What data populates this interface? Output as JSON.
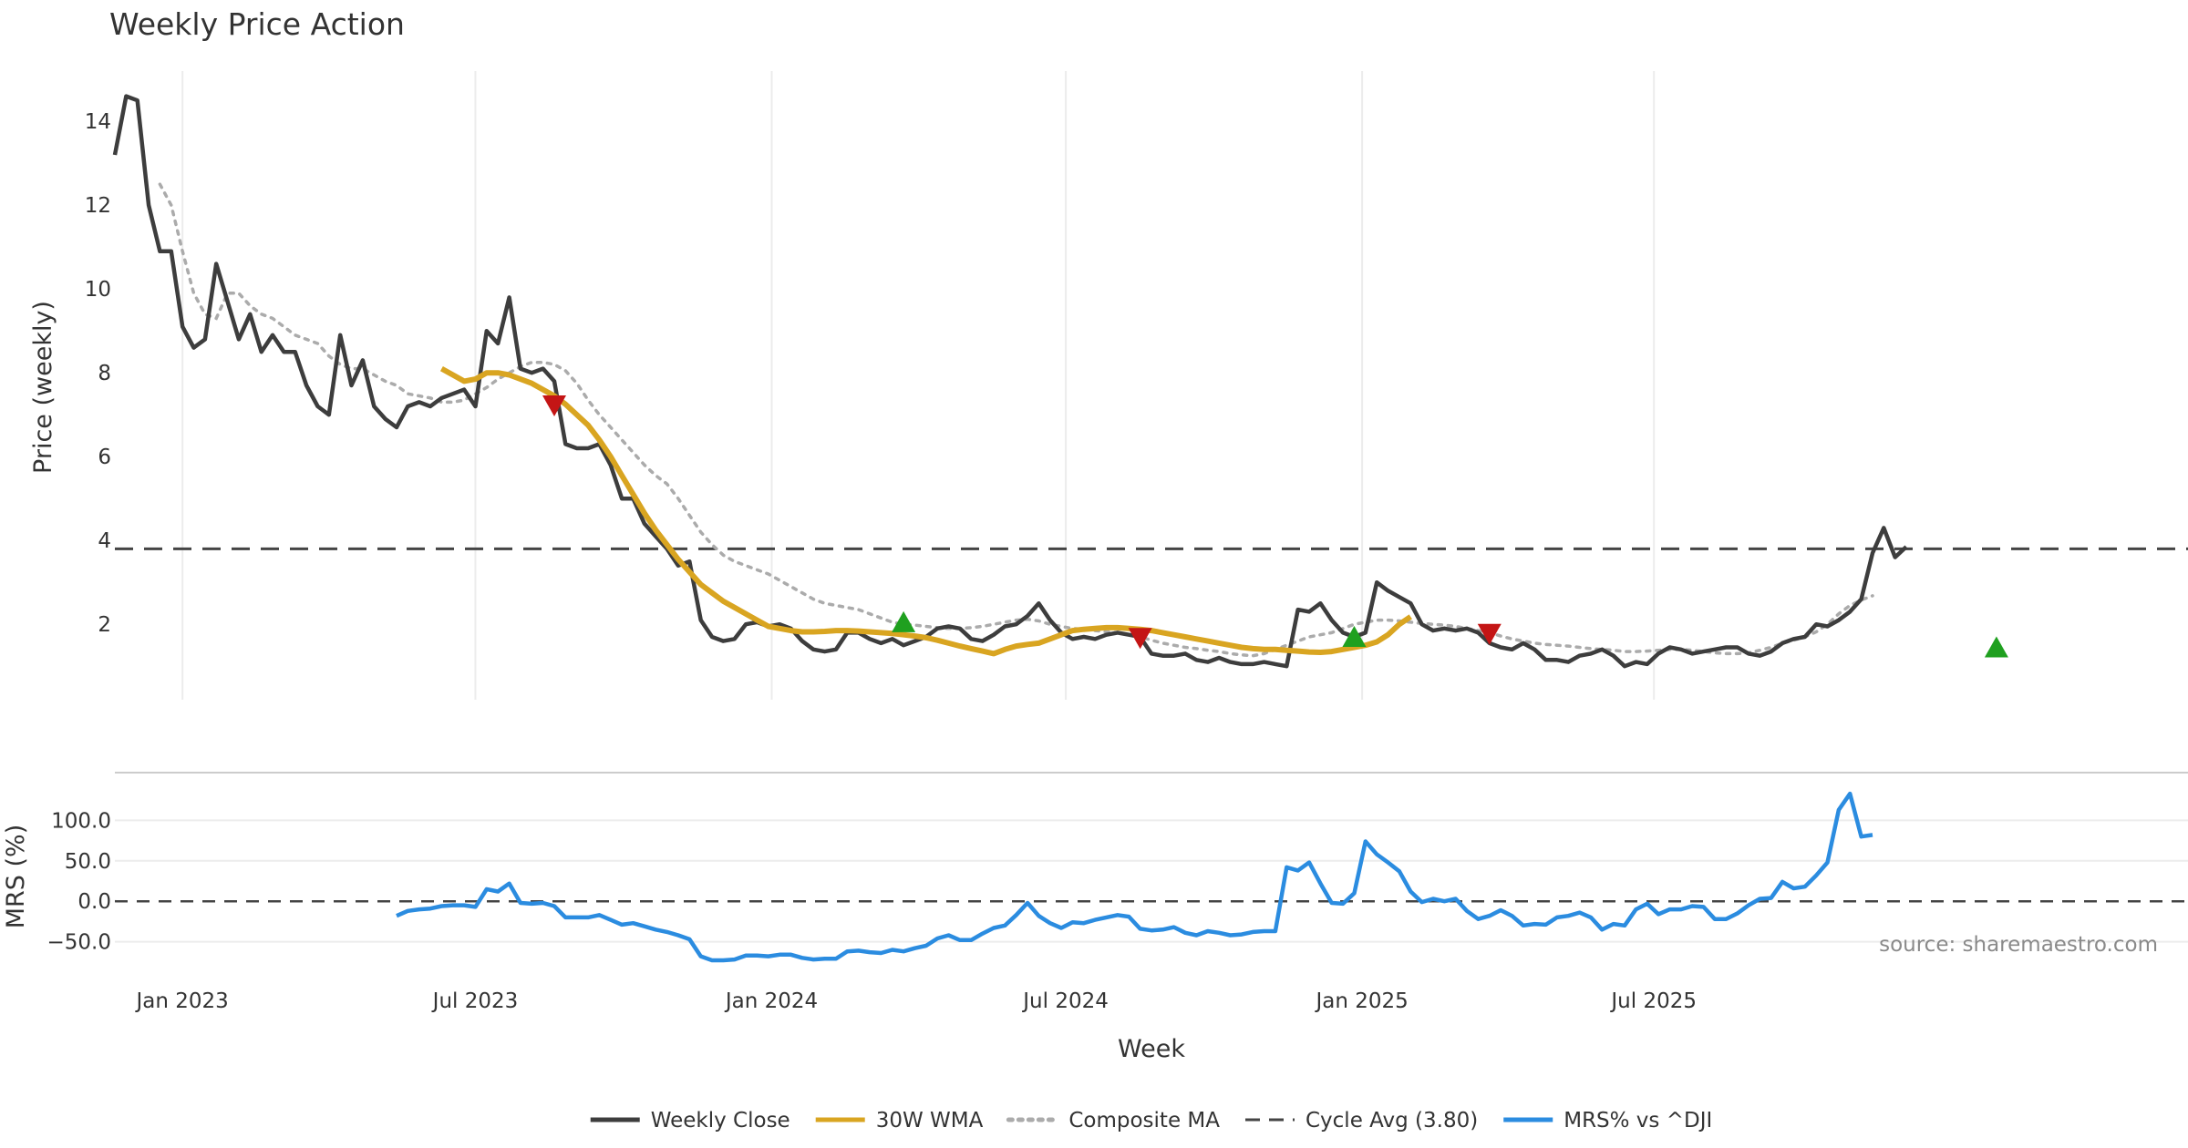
{
  "chart_data": [
    {
      "type": "line",
      "title": "Weekly Price Action",
      "ylabel": "Price (weekly)",
      "ylim": [
        0.2,
        15.2
      ],
      "yticks": [
        2,
        4,
        6,
        8,
        10,
        12,
        14
      ],
      "xlim": [
        0,
        184
      ],
      "x_axis_unit": "weeks since 2022-11-21",
      "reference_line": {
        "name": "Cycle Avg (3.80)",
        "value": 3.8
      },
      "series": [
        {
          "name": "Weekly Close",
          "color": "#3d3d3d",
          "style": "solid",
          "values": [
            13.2,
            14.6,
            14.5,
            12.0,
            10.9,
            10.9,
            9.1,
            8.6,
            8.8,
            10.6,
            9.7,
            8.8,
            9.4,
            8.5,
            8.9,
            8.5,
            8.5,
            7.7,
            7.2,
            7.0,
            8.9,
            7.7,
            8.3,
            7.2,
            6.9,
            6.7,
            7.2,
            7.3,
            7.2,
            7.4,
            7.5,
            7.6,
            7.2,
            9.0,
            8.7,
            9.8,
            8.1,
            8.0,
            8.1,
            7.8,
            6.3,
            6.2,
            6.2,
            6.3,
            5.8,
            5.0,
            5.0,
            4.4,
            4.1,
            3.8,
            3.4,
            3.5,
            2.1,
            1.7,
            1.6,
            1.65,
            2.0,
            2.05,
            1.95,
            2.0,
            1.9,
            1.6,
            1.4,
            1.35,
            1.4,
            1.8,
            1.8,
            1.65,
            1.55,
            1.65,
            1.5,
            1.6,
            1.7,
            1.9,
            1.95,
            1.9,
            1.65,
            1.6,
            1.75,
            1.95,
            2.0,
            2.2,
            2.5,
            2.1,
            1.8,
            1.65,
            1.7,
            1.65,
            1.75,
            1.8,
            1.75,
            1.7,
            1.3,
            1.25,
            1.25,
            1.3,
            1.15,
            1.1,
            1.2,
            1.1,
            1.05,
            1.05,
            1.1,
            1.05,
            1.0,
            2.35,
            2.3,
            2.5,
            2.1,
            1.8,
            1.7,
            1.8,
            3.0,
            2.8,
            2.65,
            2.5,
            2.0,
            1.85,
            1.9,
            1.85,
            1.9,
            1.8,
            1.55,
            1.45,
            1.4,
            1.55,
            1.4,
            1.15,
            1.15,
            1.1,
            1.25,
            1.3,
            1.4,
            1.25,
            1.0,
            1.1,
            1.05,
            1.3,
            1.45,
            1.4,
            1.3,
            1.35,
            1.4,
            1.45,
            1.45,
            1.3,
            1.25,
            1.35,
            1.55,
            1.65,
            1.7,
            2.0,
            1.95,
            2.1,
            2.3,
            2.6,
            3.7,
            4.3,
            3.6,
            3.85
          ]
        },
        {
          "name": "30W WMA",
          "color": "#d9a521",
          "style": "solid",
          "start_week": 29,
          "values": [
            8.1,
            7.95,
            7.8,
            7.85,
            8.0,
            8.0,
            7.95,
            7.85,
            7.75,
            7.6,
            7.45,
            7.25,
            7.0,
            6.75,
            6.4,
            6.0,
            5.55,
            5.1,
            4.65,
            4.25,
            3.9,
            3.55,
            3.25,
            2.95,
            2.75,
            2.55,
            2.4,
            2.25,
            2.1,
            1.95,
            1.9,
            1.85,
            1.82,
            1.82,
            1.83,
            1.85,
            1.85,
            1.84,
            1.82,
            1.8,
            1.78,
            1.75,
            1.72,
            1.68,
            1.62,
            1.55,
            1.48,
            1.42,
            1.36,
            1.3,
            1.4,
            1.48,
            1.52,
            1.55,
            1.65,
            1.75,
            1.85,
            1.88,
            1.9,
            1.92,
            1.92,
            1.9,
            1.88,
            1.85,
            1.8,
            1.75,
            1.7,
            1.65,
            1.6,
            1.55,
            1.5,
            1.45,
            1.42,
            1.4,
            1.4,
            1.38,
            1.36,
            1.34,
            1.33,
            1.35,
            1.4,
            1.45,
            1.5,
            1.58,
            1.75,
            2.0,
            2.18
          ]
        },
        {
          "name": "Composite MA",
          "color": "#ababab",
          "style": "dotted",
          "start_week": 4,
          "values": [
            12.5,
            12.0,
            10.9,
            9.9,
            9.4,
            9.3,
            9.9,
            9.9,
            9.6,
            9.4,
            9.3,
            9.1,
            8.9,
            8.8,
            8.7,
            8.4,
            8.2,
            8.1,
            8.1,
            7.95,
            7.8,
            7.7,
            7.5,
            7.45,
            7.4,
            7.3,
            7.3,
            7.35,
            7.5,
            7.65,
            7.85,
            8.0,
            8.15,
            8.25,
            8.25,
            8.2,
            8.05,
            7.75,
            7.35,
            7.0,
            6.7,
            6.4,
            6.1,
            5.8,
            5.55,
            5.35,
            5.0,
            4.6,
            4.2,
            3.9,
            3.65,
            3.5,
            3.4,
            3.3,
            3.2,
            3.05,
            2.9,
            2.75,
            2.6,
            2.5,
            2.45,
            2.4,
            2.35,
            2.25,
            2.15,
            2.05,
            2.0,
            1.98,
            1.95,
            1.92,
            1.9,
            1.9,
            1.92,
            1.95,
            2.0,
            2.05,
            2.1,
            2.12,
            2.08,
            2.0,
            1.95,
            1.9,
            1.88,
            1.85,
            1.82,
            1.8,
            1.75,
            1.7,
            1.62,
            1.55,
            1.5,
            1.45,
            1.42,
            1.38,
            1.35,
            1.3,
            1.27,
            1.25,
            1.3,
            1.4,
            1.5,
            1.6,
            1.7,
            1.75,
            1.8,
            1.9,
            2.0,
            2.05,
            2.1,
            2.1,
            2.08,
            2.05,
            2.02,
            2.0,
            1.98,
            1.95,
            1.9,
            1.85,
            1.8,
            1.72,
            1.65,
            1.6,
            1.55,
            1.52,
            1.5,
            1.48,
            1.45,
            1.42,
            1.4,
            1.38,
            1.35,
            1.35,
            1.36,
            1.38,
            1.4,
            1.4,
            1.38,
            1.35,
            1.32,
            1.3,
            1.3,
            1.32,
            1.38,
            1.45,
            1.55,
            1.62,
            1.7,
            1.82,
            2.0,
            2.25,
            2.45,
            2.58,
            2.68
          ]
        }
      ],
      "signals": [
        {
          "type": "sell",
          "week": 39,
          "value": 7.2,
          "color": "#c41515"
        },
        {
          "type": "buy",
          "week": 70,
          "value": 2.05,
          "color": "#1fa01f"
        },
        {
          "type": "sell",
          "week": 91,
          "value": 1.65,
          "color": "#c41515"
        },
        {
          "type": "buy",
          "week": 110,
          "value": 1.7,
          "color": "#1fa01f"
        },
        {
          "type": "sell",
          "week": 122,
          "value": 1.75,
          "color": "#c41515"
        },
        {
          "type": "buy",
          "week": 167,
          "value": 1.45,
          "color": "#1fa01f"
        }
      ]
    },
    {
      "type": "line",
      "title": "",
      "ylabel": "MRS (%)",
      "ylim": [
        -82,
        150
      ],
      "yticks": [
        100.0,
        50.0,
        0.0,
        -50.0
      ],
      "ytick_labels": [
        "100.0",
        "50.0",
        "0.0",
        "−50.0"
      ],
      "reference_line": {
        "name": "zero",
        "value": 0
      },
      "series": [
        {
          "name": "MRS% vs ^DJI",
          "color": "#2b8ce0",
          "style": "solid",
          "start_week": 25,
          "values": [
            -18,
            -12,
            -10,
            -9,
            -6,
            -5,
            -5,
            -7,
            15,
            12,
            22,
            -2,
            -3,
            -2,
            -6,
            -20,
            -20,
            -20,
            -17,
            -23,
            -29,
            -27,
            -31,
            -35,
            -38,
            -42,
            -47,
            -68,
            -73,
            -73,
            -72,
            -67,
            -67,
            -68,
            -66,
            -66,
            -70,
            -72,
            -71,
            -71,
            -62,
            -61,
            -63,
            -64,
            -60,
            -62,
            -58,
            -55,
            -46,
            -42,
            -48,
            -48,
            -40,
            -33,
            -30,
            -17,
            -2,
            -18,
            -27,
            -33,
            -26,
            -27,
            -23,
            -20,
            -17,
            -19,
            -34,
            -36,
            -35,
            -32,
            -39,
            -42,
            -37,
            -39,
            -42,
            -41,
            -38,
            -37,
            -37,
            42,
            38,
            48,
            22,
            -2,
            -3,
            10,
            74,
            58,
            48,
            37,
            12,
            -1,
            3,
            0,
            3,
            -12,
            -22,
            -18,
            -11,
            -18,
            -30,
            -28,
            -29,
            -20,
            -18,
            -14,
            -20,
            -35,
            -28,
            -30,
            -10,
            -3,
            -16,
            -10,
            -10,
            -6,
            -7,
            -22,
            -22,
            -15,
            -5,
            3,
            4,
            24,
            16,
            18,
            32,
            48,
            113,
            133,
            80,
            82
          ]
        }
      ]
    }
  ],
  "x_axis": {
    "label": "Week",
    "ticks": [
      {
        "label": "Jan 2023",
        "week": 6
      },
      {
        "label": "Jul 2023",
        "week": 32
      },
      {
        "label": "Jan 2024",
        "week": 58.3
      },
      {
        "label": "Jul 2024",
        "week": 84.4
      },
      {
        "label": "Jan 2025",
        "week": 110.7
      },
      {
        "label": "Jul 2025",
        "week": 136.6
      }
    ]
  },
  "source": "source: sharemaestro.com",
  "legend": [
    {
      "label": "Weekly Close",
      "color": "#3d3d3d",
      "style": "solid"
    },
    {
      "label": "30W WMA",
      "color": "#d9a521",
      "style": "solid"
    },
    {
      "label": "Composite MA",
      "color": "#ababab",
      "style": "dotted"
    },
    {
      "label": "Cycle Avg (3.80)",
      "color": "#444444",
      "style": "dashed"
    },
    {
      "label": "MRS% vs ^DJI",
      "color": "#2b8ce0",
      "style": "solid"
    }
  ]
}
